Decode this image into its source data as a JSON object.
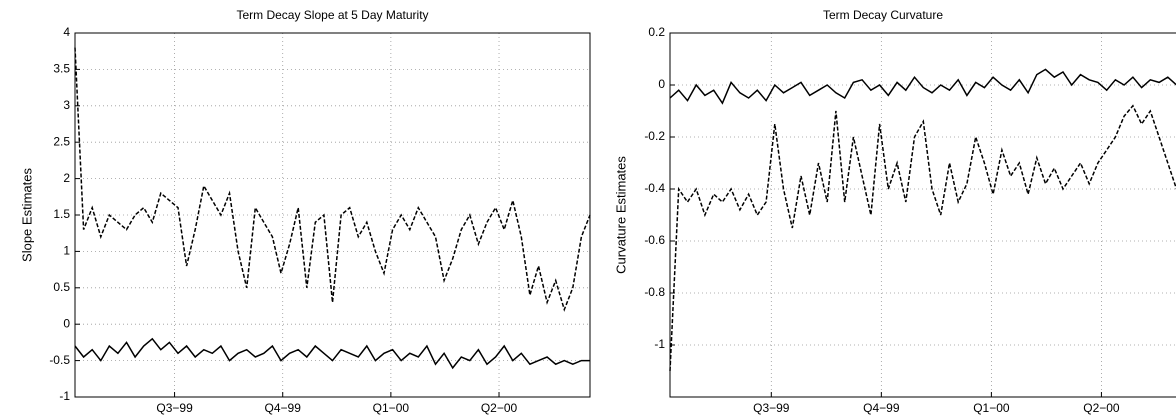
{
  "chart_data": [
    {
      "type": "line",
      "title": "Term Decay Slope at 5 Day Maturity",
      "y_label": "Slope Estimates",
      "x": [
        0,
        5,
        10,
        15,
        20,
        25,
        30,
        35,
        40,
        45,
        50,
        55,
        60,
        65,
        70,
        75,
        80,
        85,
        90,
        95,
        100,
        105,
        110,
        115,
        120,
        125,
        130,
        135,
        140,
        145,
        150,
        155,
        160,
        165,
        170,
        175,
        180,
        185,
        190,
        195,
        200,
        205,
        210,
        215,
        220,
        225,
        230,
        235,
        240,
        245,
        250,
        255,
        260,
        265,
        270,
        275,
        280,
        285,
        290,
        295,
        300
      ],
      "xlim": [
        0,
        300
      ],
      "xticks": [
        {
          "value": 58,
          "label": "Q3−99"
        },
        {
          "value": 121,
          "label": "Q4−99"
        },
        {
          "value": 184,
          "label": "Q1−00"
        },
        {
          "value": 247,
          "label": "Q2−00"
        }
      ],
      "ylim": [
        -1,
        4
      ],
      "yticks": [
        -1,
        -0.5,
        0,
        0.5,
        1,
        1.5,
        2,
        2.5,
        3,
        3.5,
        4
      ],
      "grid": true,
      "series": [
        {
          "color": "#000000",
          "style": "solid",
          "values": [
            -0.3,
            -0.45,
            -0.35,
            -0.5,
            -0.3,
            -0.4,
            -0.25,
            -0.45,
            -0.3,
            -0.2,
            -0.35,
            -0.25,
            -0.4,
            -0.3,
            -0.45,
            -0.35,
            -0.4,
            -0.3,
            -0.5,
            -0.4,
            -0.35,
            -0.45,
            -0.4,
            -0.3,
            -0.5,
            -0.4,
            -0.35,
            -0.45,
            -0.3,
            -0.4,
            -0.5,
            -0.35,
            -0.4,
            -0.45,
            -0.3,
            -0.5,
            -0.4,
            -0.35,
            -0.5,
            -0.4,
            -0.45,
            -0.3,
            -0.55,
            -0.4,
            -0.6,
            -0.45,
            -0.5,
            -0.35,
            -0.55,
            -0.45,
            -0.3,
            -0.5,
            -0.4,
            -0.55,
            -0.5,
            -0.45,
            -0.55,
            -0.5,
            -0.55,
            -0.5,
            -0.5
          ]
        },
        {
          "color": "#000000",
          "style": "dashed",
          "values": [
            3.8,
            1.3,
            1.6,
            1.2,
            1.5,
            1.4,
            1.3,
            1.5,
            1.6,
            1.4,
            1.8,
            1.7,
            1.6,
            0.8,
            1.3,
            1.9,
            1.7,
            1.5,
            1.8,
            1.0,
            0.5,
            1.6,
            1.4,
            1.2,
            0.7,
            1.1,
            1.6,
            0.5,
            1.4,
            1.5,
            0.3,
            1.5,
            1.6,
            1.2,
            1.4,
            1.0,
            0.7,
            1.3,
            1.5,
            1.3,
            1.6,
            1.4,
            1.2,
            0.6,
            0.9,
            1.3,
            1.5,
            1.1,
            1.4,
            1.6,
            1.3,
            1.7,
            1.2,
            0.4,
            0.8,
            0.3,
            0.6,
            0.2,
            0.5,
            1.2,
            1.5
          ]
        }
      ]
    },
    {
      "type": "line",
      "title": "Term Decay Curvature",
      "y_label": "Curvature Estimates",
      "x": [
        0,
        5,
        10,
        15,
        20,
        25,
        30,
        35,
        40,
        45,
        50,
        55,
        60,
        65,
        70,
        75,
        80,
        85,
        90,
        95,
        100,
        105,
        110,
        115,
        120,
        125,
        130,
        135,
        140,
        145,
        150,
        155,
        160,
        165,
        170,
        175,
        180,
        185,
        190,
        195,
        200,
        205,
        210,
        215,
        220,
        225,
        230,
        235,
        240,
        245,
        250,
        255,
        260,
        265,
        270,
        275,
        280,
        285,
        290,
        295,
        300
      ],
      "xlim": [
        0,
        300
      ],
      "xticks": [
        {
          "value": 58,
          "label": "Q3−99"
        },
        {
          "value": 121,
          "label": "Q4−99"
        },
        {
          "value": 184,
          "label": "Q1−00"
        },
        {
          "value": 247,
          "label": "Q2−00"
        }
      ],
      "ylim": [
        -1.2,
        0.2
      ],
      "yticks": [
        -1,
        -0.8,
        -0.6,
        -0.4,
        -0.2,
        0,
        0.2
      ],
      "grid": true,
      "series": [
        {
          "color": "#000000",
          "style": "solid",
          "values": [
            -0.05,
            -0.02,
            -0.06,
            0.0,
            -0.04,
            -0.02,
            -0.07,
            0.01,
            -0.03,
            -0.05,
            -0.02,
            -0.06,
            0.0,
            -0.03,
            -0.01,
            0.01,
            -0.04,
            -0.02,
            0.0,
            -0.03,
            -0.05,
            0.01,
            0.02,
            -0.02,
            0.0,
            -0.04,
            0.01,
            -0.02,
            0.03,
            -0.01,
            -0.03,
            0.0,
            -0.02,
            0.02,
            -0.04,
            0.01,
            -0.01,
            0.03,
            0.0,
            -0.02,
            0.02,
            -0.03,
            0.04,
            0.06,
            0.03,
            0.05,
            0.0,
            0.04,
            0.02,
            0.01,
            -0.02,
            0.02,
            0.0,
            0.03,
            -0.01,
            0.02,
            0.01,
            0.03,
            0.0,
            0.02,
            0.01
          ]
        },
        {
          "color": "#000000",
          "style": "dashed",
          "values": [
            -1.1,
            -0.4,
            -0.45,
            -0.4,
            -0.5,
            -0.42,
            -0.45,
            -0.4,
            -0.48,
            -0.42,
            -0.5,
            -0.45,
            -0.15,
            -0.4,
            -0.55,
            -0.35,
            -0.5,
            -0.3,
            -0.45,
            -0.1,
            -0.45,
            -0.2,
            -0.35,
            -0.5,
            -0.15,
            -0.4,
            -0.3,
            -0.45,
            -0.2,
            -0.14,
            -0.4,
            -0.5,
            -0.3,
            -0.45,
            -0.38,
            -0.2,
            -0.3,
            -0.42,
            -0.25,
            -0.35,
            -0.3,
            -0.42,
            -0.28,
            -0.38,
            -0.32,
            -0.4,
            -0.35,
            -0.3,
            -0.38,
            -0.3,
            -0.25,
            -0.2,
            -0.12,
            -0.08,
            -0.15,
            -0.1,
            -0.2,
            -0.3,
            -0.4,
            -0.46,
            -0.45
          ]
        }
      ]
    }
  ]
}
